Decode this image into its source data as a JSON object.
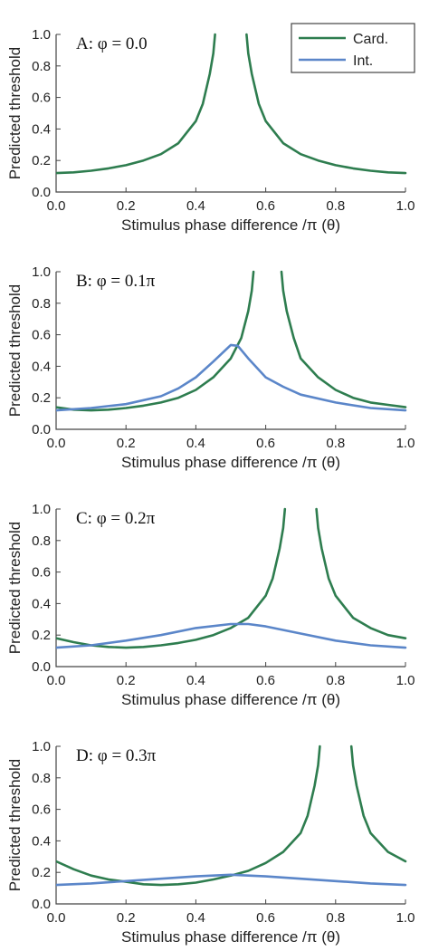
{
  "colors": {
    "cardinal": "#2e7d4f",
    "intermediate": "#5b86c9"
  },
  "legend": {
    "placement": "top-right",
    "entries": [
      "Card.",
      "Int."
    ]
  },
  "chart_data": [
    {
      "type": "line",
      "panel_label": "A: φ = 0.0",
      "xlabel": "Stimulus phase difference /π (θ)",
      "ylabel": "Predicted threshold",
      "xlim": [
        0,
        1
      ],
      "ylim": [
        0,
        1
      ],
      "xticks": [
        "0.0",
        "0.2",
        "0.4",
        "0.6",
        "0.8",
        "1.0"
      ],
      "yticks": [
        "0.0",
        "0.2",
        "0.4",
        "0.6",
        "0.8",
        "1.0"
      ],
      "series": [
        {
          "name": "Card.",
          "segments": [
            [
              [
                0.0,
                0.12
              ],
              [
                0.05,
                0.125
              ],
              [
                0.1,
                0.135
              ],
              [
                0.15,
                0.15
              ],
              [
                0.2,
                0.17
              ],
              [
                0.25,
                0.2
              ],
              [
                0.3,
                0.24
              ],
              [
                0.35,
                0.31
              ],
              [
                0.4,
                0.45
              ],
              [
                0.42,
                0.56
              ],
              [
                0.44,
                0.75
              ],
              [
                0.45,
                0.88
              ],
              [
                0.455,
                1.0
              ]
            ],
            [
              [
                0.545,
                1.0
              ],
              [
                0.55,
                0.88
              ],
              [
                0.56,
                0.75
              ],
              [
                0.58,
                0.56
              ],
              [
                0.6,
                0.45
              ],
              [
                0.65,
                0.31
              ],
              [
                0.7,
                0.24
              ],
              [
                0.75,
                0.2
              ],
              [
                0.8,
                0.17
              ],
              [
                0.85,
                0.15
              ],
              [
                0.9,
                0.135
              ],
              [
                0.95,
                0.125
              ],
              [
                1.0,
                0.12
              ]
            ]
          ]
        }
      ]
    },
    {
      "type": "line",
      "panel_label": "B: φ = 0.1π",
      "xlabel": "Stimulus phase difference /π (θ)",
      "ylabel": "Predicted threshold",
      "xlim": [
        0,
        1
      ],
      "ylim": [
        0,
        1
      ],
      "xticks": [
        "0.0",
        "0.2",
        "0.4",
        "0.6",
        "0.8",
        "1.0"
      ],
      "yticks": [
        "0.0",
        "0.2",
        "0.4",
        "0.6",
        "0.8",
        "1.0"
      ],
      "series": [
        {
          "name": "Card.",
          "segments": [
            [
              [
                0.0,
                0.14
              ],
              [
                0.05,
                0.125
              ],
              [
                0.1,
                0.12
              ],
              [
                0.15,
                0.125
              ],
              [
                0.2,
                0.135
              ],
              [
                0.25,
                0.15
              ],
              [
                0.3,
                0.17
              ],
              [
                0.35,
                0.2
              ],
              [
                0.4,
                0.25
              ],
              [
                0.45,
                0.33
              ],
              [
                0.5,
                0.45
              ],
              [
                0.53,
                0.58
              ],
              [
                0.55,
                0.75
              ],
              [
                0.56,
                0.88
              ],
              [
                0.565,
                1.0
              ]
            ],
            [
              [
                0.645,
                1.0
              ],
              [
                0.65,
                0.88
              ],
              [
                0.66,
                0.75
              ],
              [
                0.68,
                0.58
              ],
              [
                0.7,
                0.45
              ],
              [
                0.75,
                0.33
              ],
              [
                0.8,
                0.25
              ],
              [
                0.85,
                0.2
              ],
              [
                0.9,
                0.17
              ],
              [
                0.95,
                0.155
              ],
              [
                1.0,
                0.14
              ]
            ]
          ]
        },
        {
          "name": "Int.",
          "segments": [
            [
              [
                0.0,
                0.12
              ],
              [
                0.1,
                0.135
              ],
              [
                0.2,
                0.16
              ],
              [
                0.3,
                0.21
              ],
              [
                0.35,
                0.26
              ],
              [
                0.4,
                0.33
              ],
              [
                0.45,
                0.43
              ],
              [
                0.5,
                0.535
              ],
              [
                0.52,
                0.53
              ],
              [
                0.55,
                0.45
              ],
              [
                0.6,
                0.33
              ],
              [
                0.65,
                0.27
              ],
              [
                0.7,
                0.22
              ],
              [
                0.8,
                0.17
              ],
              [
                0.9,
                0.135
              ],
              [
                1.0,
                0.12
              ]
            ]
          ]
        }
      ]
    },
    {
      "type": "line",
      "panel_label": "C: φ = 0.2π",
      "xlabel": "Stimulus phase difference /π (θ)",
      "ylabel": "Predicted threshold",
      "xlim": [
        0,
        1
      ],
      "ylim": [
        0,
        1
      ],
      "xticks": [
        "0.0",
        "0.2",
        "0.4",
        "0.6",
        "0.8",
        "1.0"
      ],
      "yticks": [
        "0.0",
        "0.2",
        "0.4",
        "0.6",
        "0.8",
        "1.0"
      ],
      "series": [
        {
          "name": "Card.",
          "segments": [
            [
              [
                0.0,
                0.18
              ],
              [
                0.05,
                0.155
              ],
              [
                0.1,
                0.135
              ],
              [
                0.15,
                0.125
              ],
              [
                0.2,
                0.12
              ],
              [
                0.25,
                0.125
              ],
              [
                0.3,
                0.135
              ],
              [
                0.35,
                0.15
              ],
              [
                0.4,
                0.17
              ],
              [
                0.45,
                0.2
              ],
              [
                0.5,
                0.245
              ],
              [
                0.55,
                0.31
              ],
              [
                0.6,
                0.45
              ],
              [
                0.62,
                0.56
              ],
              [
                0.64,
                0.75
              ],
              [
                0.65,
                0.88
              ],
              [
                0.655,
                1.0
              ]
            ],
            [
              [
                0.745,
                1.0
              ],
              [
                0.75,
                0.88
              ],
              [
                0.76,
                0.75
              ],
              [
                0.78,
                0.56
              ],
              [
                0.8,
                0.45
              ],
              [
                0.85,
                0.31
              ],
              [
                0.9,
                0.245
              ],
              [
                0.95,
                0.2
              ],
              [
                1.0,
                0.18
              ]
            ]
          ]
        },
        {
          "name": "Int.",
          "segments": [
            [
              [
                0.0,
                0.12
              ],
              [
                0.1,
                0.135
              ],
              [
                0.2,
                0.165
              ],
              [
                0.3,
                0.2
              ],
              [
                0.4,
                0.245
              ],
              [
                0.5,
                0.27
              ],
              [
                0.55,
                0.27
              ],
              [
                0.6,
                0.255
              ],
              [
                0.7,
                0.21
              ],
              [
                0.8,
                0.165
              ],
              [
                0.9,
                0.135
              ],
              [
                1.0,
                0.12
              ]
            ]
          ]
        }
      ]
    },
    {
      "type": "line",
      "panel_label": "D: φ = 0.3π",
      "xlabel": "Stimulus phase difference /π (θ)",
      "ylabel": "Predicted threshold",
      "xlim": [
        0,
        1
      ],
      "ylim": [
        0,
        1
      ],
      "xticks": [
        "0.0",
        "0.2",
        "0.4",
        "0.6",
        "0.8",
        "1.0"
      ],
      "yticks": [
        "0.0",
        "0.2",
        "0.4",
        "0.6",
        "0.8",
        "1.0"
      ],
      "series": [
        {
          "name": "Card.",
          "segments": [
            [
              [
                0.0,
                0.27
              ],
              [
                0.05,
                0.22
              ],
              [
                0.1,
                0.18
              ],
              [
                0.15,
                0.155
              ],
              [
                0.2,
                0.14
              ],
              [
                0.25,
                0.125
              ],
              [
                0.3,
                0.12
              ],
              [
                0.35,
                0.125
              ],
              [
                0.4,
                0.135
              ],
              [
                0.45,
                0.155
              ],
              [
                0.5,
                0.18
              ],
              [
                0.55,
                0.21
              ],
              [
                0.6,
                0.26
              ],
              [
                0.65,
                0.33
              ],
              [
                0.7,
                0.45
              ],
              [
                0.72,
                0.56
              ],
              [
                0.74,
                0.75
              ],
              [
                0.75,
                0.88
              ],
              [
                0.755,
                1.0
              ]
            ],
            [
              [
                0.845,
                1.0
              ],
              [
                0.85,
                0.88
              ],
              [
                0.86,
                0.75
              ],
              [
                0.88,
                0.56
              ],
              [
                0.9,
                0.45
              ],
              [
                0.95,
                0.33
              ],
              [
                1.0,
                0.27
              ]
            ]
          ]
        },
        {
          "name": "Int.",
          "segments": [
            [
              [
                0.0,
                0.12
              ],
              [
                0.1,
                0.13
              ],
              [
                0.2,
                0.145
              ],
              [
                0.3,
                0.16
              ],
              [
                0.4,
                0.175
              ],
              [
                0.5,
                0.185
              ],
              [
                0.6,
                0.175
              ],
              [
                0.7,
                0.16
              ],
              [
                0.8,
                0.145
              ],
              [
                0.9,
                0.13
              ],
              [
                1.0,
                0.12
              ]
            ]
          ]
        }
      ]
    }
  ]
}
